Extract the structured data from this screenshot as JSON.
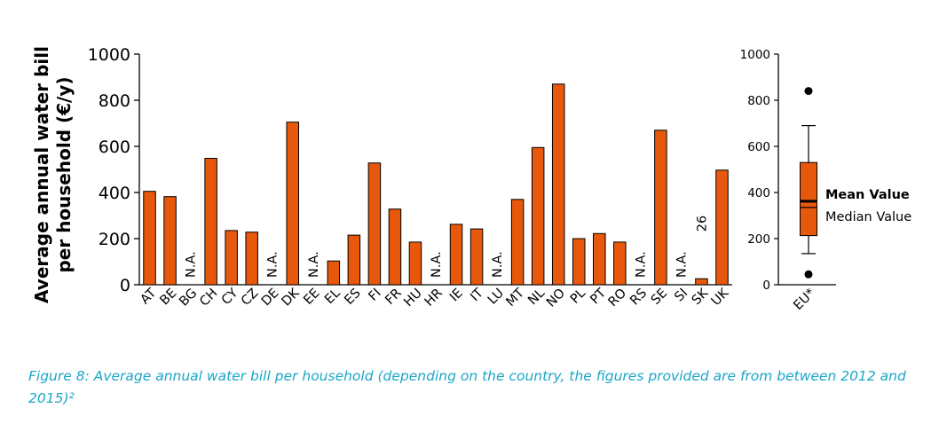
{
  "chart_data": [
    {
      "type": "bar",
      "ylabel_line1": "Average annual water bill",
      "ylabel_line2": "per household (€/y)",
      "ylim": [
        0,
        1000
      ],
      "yticks": [
        "0",
        "200",
        "400",
        "600",
        "800",
        "1000"
      ],
      "bar_color": "#e8580c",
      "categories": [
        "AT",
        "BE",
        "BG",
        "CH",
        "CY",
        "CZ",
        "DE",
        "DK",
        "EE",
        "EL",
        "ES",
        "FI",
        "FR",
        "HU",
        "HR",
        "IE",
        "IT",
        "LU",
        "MT",
        "NL",
        "NO",
        "PL",
        "PT",
        "RO",
        "RS",
        "SE",
        "SI",
        "SK",
        "UK"
      ],
      "values": [
        405,
        382,
        null,
        548,
        235,
        228,
        null,
        705,
        null,
        103,
        215,
        528,
        328,
        185,
        null,
        262,
        242,
        null,
        370,
        595,
        870,
        200,
        222,
        185,
        null,
        670,
        null,
        26,
        497
      ],
      "na_label": "N.A.",
      "value_annotation": {
        "category": "SK",
        "text": "26"
      }
    },
    {
      "type": "box",
      "category": "EU*",
      "ylim": [
        0,
        1000
      ],
      "yticks": [
        "0",
        "200",
        "400",
        "600",
        "800",
        "1000"
      ],
      "whisker_low": 135,
      "q1": 213,
      "median": 335,
      "mean": 362,
      "q3": 530,
      "whisker_high": 690,
      "outliers": [
        840,
        45
      ],
      "legend_mean": "Mean Value",
      "legend_median": "Median Value"
    }
  ],
  "caption": "Figure 8: Average annual water bill per household (depending on the country, the figures provided are from between 2012 and 2015)²"
}
